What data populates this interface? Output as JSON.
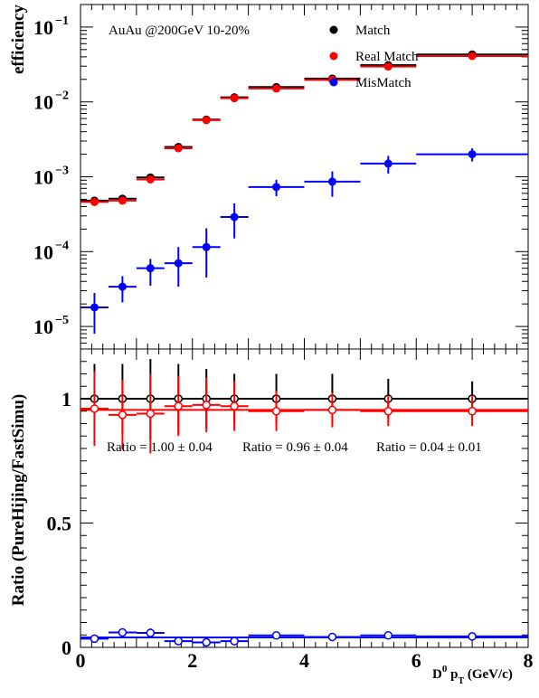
{
  "chart_data": [
    {
      "type": "scatter",
      "panel": "top",
      "ylabel": "efficiency",
      "yscale": "log",
      "xlim": [
        0,
        8
      ],
      "ylim": [
        5e-06,
        0.2
      ],
      "yticklabels": [
        {
          "v": 1e-05,
          "base": "10",
          "exp": "−5"
        },
        {
          "v": 0.0001,
          "base": "10",
          "exp": "−4"
        },
        {
          "v": 0.001,
          "base": "10",
          "exp": "−3"
        },
        {
          "v": 0.01,
          "base": "10",
          "exp": "−2"
        },
        {
          "v": 0.1,
          "base": "10",
          "exp": "−1"
        }
      ],
      "annotation": "AuAu @200GeV  10-20%",
      "legend_position": "top-right",
      "series": [
        {
          "name": "Match",
          "color": "#000000",
          "marker": "filled-circle",
          "x": [
            0.25,
            0.75,
            1.25,
            1.75,
            2.25,
            2.75,
            3.5,
            4.5,
            5.5,
            7.0
          ],
          "xerr": [
            0.25,
            0.25,
            0.25,
            0.25,
            0.25,
            0.25,
            0.5,
            0.5,
            0.5,
            1.0
          ],
          "y": [
            0.00048,
            0.00051,
            0.00098,
            0.0025,
            0.0058,
            0.0115,
            0.0158,
            0.0205,
            0.031,
            0.043
          ],
          "yerr_low": [
            3e-05,
            3e-05,
            6e-05,
            0.00012,
            0.00025,
            0.0005,
            0.0006,
            0.0008,
            0.0015,
            0.002
          ],
          "yerr_high": [
            3e-05,
            3e-05,
            6e-05,
            0.00012,
            0.00025,
            0.0005,
            0.0006,
            0.0008,
            0.0015,
            0.002
          ]
        },
        {
          "name": "Real Match",
          "color": "#ff0000",
          "marker": "filled-circle",
          "x": [
            0.25,
            0.75,
            1.25,
            1.75,
            2.25,
            2.75,
            3.5,
            4.5,
            5.5,
            7.0
          ],
          "xerr": [
            0.25,
            0.25,
            0.25,
            0.25,
            0.25,
            0.25,
            0.5,
            0.5,
            0.5,
            1.0
          ],
          "y": [
            0.00046,
            0.00048,
            0.00092,
            0.0024,
            0.0057,
            0.0112,
            0.0151,
            0.0197,
            0.0297,
            0.041
          ],
          "yerr_low": [
            3e-05,
            3e-05,
            6e-05,
            0.00012,
            0.00025,
            0.0005,
            0.0006,
            0.0008,
            0.0015,
            0.002
          ],
          "yerr_high": [
            3e-05,
            3e-05,
            6e-05,
            0.00012,
            0.00025,
            0.0005,
            0.0006,
            0.0008,
            0.0015,
            0.002
          ]
        },
        {
          "name": "MisMatch",
          "color": "#0000ff",
          "marker": "filled-circle",
          "x": [
            0.25,
            0.75,
            1.25,
            1.75,
            2.25,
            2.75,
            3.5,
            4.5,
            5.5,
            7.0
          ],
          "xerr": [
            0.25,
            0.25,
            0.25,
            0.25,
            0.25,
            0.25,
            0.5,
            0.5,
            0.5,
            1.0
          ],
          "y": [
            1.8e-05,
            3.4e-05,
            6e-05,
            7e-05,
            0.000115,
            0.00029,
            0.00073,
            0.00086,
            0.0015,
            0.002
          ],
          "yerr_low": [
            1e-05,
            1.3e-05,
            2.5e-05,
            3.6e-05,
            7e-05,
            0.00014,
            0.00018,
            0.00032,
            0.0004,
            0.0004
          ],
          "yerr_high": [
            1e-05,
            1.3e-05,
            2e-05,
            4.5e-05,
            9e-05,
            0.00015,
            0.00018,
            0.00032,
            0.0004,
            0.0004
          ]
        }
      ]
    },
    {
      "type": "scatter",
      "panel": "bottom",
      "xlabel": {
        "base": "D",
        "sup": "0",
        "mid": " p",
        "sub": "T",
        "unit": " (GeV/c)"
      },
      "ylabel": "Ratio (PureHijing/FastSimu)",
      "xlim": [
        0,
        8
      ],
      "ylim": [
        0,
        1.2
      ],
      "xticks": [
        0,
        2,
        4,
        6,
        8
      ],
      "xticklabels": [
        "0",
        "2",
        "4",
        "6",
        "8"
      ],
      "yticks": [
        0,
        0.5,
        1
      ],
      "yticklabels": [
        "0",
        "0.5",
        "1"
      ],
      "fit_lines": [
        {
          "label": "Ratio = 1.00 ± 0.04",
          "value": 1.0,
          "color": "#000000"
        },
        {
          "label": "Ratio = 0.96 ± 0.04",
          "value": 0.955,
          "color": "#ff0000"
        },
        {
          "label": "Ratio = 0.04 ± 0.01",
          "value": 0.04,
          "color": "#0000ff"
        }
      ],
      "series": [
        {
          "name": "Match",
          "color": "#000000",
          "marker": "open-circle",
          "x": [
            0.25,
            0.75,
            1.25,
            1.75,
            2.25,
            2.75,
            3.5,
            4.5,
            5.5,
            7.0
          ],
          "xerr": [
            0.25,
            0.25,
            0.25,
            0.25,
            0.25,
            0.25,
            0.5,
            0.5,
            0.5,
            1.0
          ],
          "y": [
            1.0,
            1.0,
            1.0,
            1.0,
            1.0,
            1.0,
            1.0,
            1.0,
            1.0,
            1.0
          ],
          "yerr": [
            0.14,
            0.14,
            0.16,
            0.14,
            0.12,
            0.1,
            0.1,
            0.1,
            0.08,
            0.07
          ]
        },
        {
          "name": "Real Match",
          "color": "#ff0000",
          "marker": "open-circle",
          "x": [
            0.25,
            0.75,
            1.25,
            1.75,
            2.25,
            2.75,
            3.5,
            4.5,
            5.5,
            7.0
          ],
          "xerr": [
            0.25,
            0.25,
            0.25,
            0.25,
            0.25,
            0.25,
            0.5,
            0.5,
            0.5,
            1.0
          ],
          "y": [
            0.96,
            0.935,
            0.94,
            0.97,
            0.975,
            0.97,
            0.95,
            0.955,
            0.95,
            0.95
          ],
          "yerr": [
            0.15,
            0.14,
            0.16,
            0.12,
            0.11,
            0.1,
            0.08,
            0.07,
            0.06,
            0.06
          ]
        },
        {
          "name": "MisMatch",
          "color": "#0000ff",
          "marker": "open-circle",
          "x": [
            0.25,
            0.75,
            1.25,
            1.75,
            2.25,
            2.75,
            3.5,
            4.5,
            5.5,
            7.0
          ],
          "xerr": [
            0.25,
            0.25,
            0.25,
            0.25,
            0.25,
            0.25,
            0.5,
            0.5,
            0.5,
            1.0
          ],
          "y": [
            0.035,
            0.06,
            0.058,
            0.025,
            0.02,
            0.025,
            0.048,
            0.042,
            0.048,
            0.044
          ],
          "yerr": [
            0.012,
            0.016,
            0.018,
            0.01,
            0.008,
            0.01,
            0.008,
            0.008,
            0.008,
            0.008
          ]
        }
      ]
    }
  ]
}
